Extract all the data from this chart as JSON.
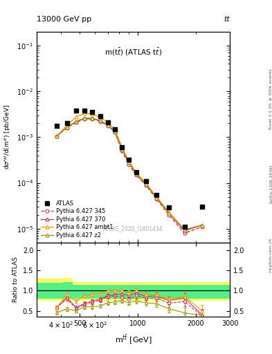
{
  "title_top": "13000 GeV pp",
  "title_right": "tt",
  "plot_title": "m(t$\\bar{t}$) (ATLAS t$\\bar{t}$)",
  "watermark": "ATLAS_2020_I1801434",
  "ylabel_main": "d$\\sigma^{fid}$/d(m$^{t\\bar{t}}$) [pb/GeV]",
  "ylabel_ratio": "Ratio to ATLAS",
  "xlabel": "m$^{t\\bar{t}}$ [GeV]",
  "atlas_x": [
    380,
    430,
    480,
    530,
    580,
    640,
    700,
    760,
    830,
    900,
    980,
    1100,
    1250,
    1450,
    1750,
    2150
  ],
  "atlas_y": [
    0.0018,
    0.002,
    0.0038,
    0.0038,
    0.0035,
    0.0029,
    0.0021,
    0.0015,
    0.0006,
    0.00032,
    0.00017,
    0.00011,
    5.5e-05,
    2.9e-05,
    1.1e-05,
    3e-05
  ],
  "p345_x": [
    380,
    430,
    480,
    530,
    580,
    640,
    700,
    760,
    830,
    900,
    980,
    1100,
    1250,
    1450,
    1750,
    2150
  ],
  "p345_y": [
    0.00105,
    0.0016,
    0.0021,
    0.0025,
    0.0025,
    0.0022,
    0.0018,
    0.0013,
    0.0005,
    0.00025,
    0.00015,
    9e-05,
    4.5e-05,
    2e-05,
    8e-06,
    1.1e-05
  ],
  "p370_x": [
    380,
    430,
    480,
    530,
    580,
    640,
    700,
    760,
    830,
    900,
    980,
    1100,
    1250,
    1450,
    1750,
    2150
  ],
  "p370_y": [
    0.00105,
    0.00165,
    0.0022,
    0.0026,
    0.0026,
    0.0023,
    0.00185,
    0.00135,
    0.00055,
    0.00028,
    0.00016,
    9.5e-05,
    4.8e-05,
    2.2e-05,
    9e-06,
    1.2e-05
  ],
  "pambt1_x": [
    380,
    430,
    480,
    530,
    580,
    640,
    700,
    760,
    830,
    900,
    980,
    1100,
    1250,
    1450,
    1750,
    2150
  ],
  "pambt1_y": [
    0.00105,
    0.0018,
    0.0028,
    0.0033,
    0.0032,
    0.0027,
    0.0021,
    0.0015,
    0.0006,
    0.0003,
    0.00017,
    0.0001,
    5e-05,
    2.3e-05,
    9.5e-06,
    1.2e-05
  ],
  "pz2_x": [
    380,
    430,
    480,
    530,
    580,
    640,
    700,
    760,
    830,
    900,
    980,
    1100,
    1250,
    1450,
    1750,
    2150
  ],
  "pz2_y": [
    0.00105,
    0.00165,
    0.0022,
    0.0026,
    0.0026,
    0.0023,
    0.00185,
    0.00135,
    0.00055,
    0.00028,
    0.00016,
    9.5e-05,
    4.8e-05,
    2.2e-05,
    9.5e-06,
    1.2e-05
  ],
  "ratio_p345_x": [
    380,
    430,
    480,
    530,
    580,
    640,
    700,
    760,
    830,
    900,
    980,
    1100,
    1250,
    1450,
    1750,
    2150
  ],
  "ratio_p345_y": [
    0.58,
    0.8,
    0.55,
    0.66,
    0.71,
    0.76,
    0.86,
    0.87,
    0.83,
    0.78,
    0.88,
    0.82,
    0.82,
    0.69,
    0.73,
    0.37
  ],
  "ratio_p345_err": [
    0.05,
    0.05,
    0.05,
    0.05,
    0.05,
    0.05,
    0.05,
    0.05,
    0.06,
    0.06,
    0.07,
    0.07,
    0.08,
    0.1,
    0.12,
    0.15
  ],
  "ratio_p370_x": [
    380,
    430,
    480,
    530,
    580,
    640,
    700,
    760,
    830,
    900,
    980,
    1100,
    1250,
    1450,
    1750,
    2150
  ],
  "ratio_p370_y": [
    0.58,
    0.83,
    0.58,
    0.68,
    0.74,
    0.79,
    0.88,
    0.9,
    0.92,
    0.88,
    0.94,
    0.86,
    0.87,
    0.76,
    0.82,
    0.4
  ],
  "ratio_p370_err": [
    0.05,
    0.05,
    0.05,
    0.05,
    0.05,
    0.05,
    0.05,
    0.05,
    0.06,
    0.06,
    0.07,
    0.07,
    0.08,
    0.1,
    0.12,
    0.15
  ],
  "ratio_pambt1_x": [
    380,
    430,
    480,
    530,
    580,
    640,
    700,
    760,
    830,
    900,
    980,
    1100,
    1250,
    1450,
    1750,
    2150
  ],
  "ratio_pambt1_y": [
    0.58,
    0.9,
    0.74,
    0.87,
    0.91,
    0.93,
    1.0,
    1.0,
    1.0,
    0.94,
    1.0,
    0.91,
    0.91,
    0.79,
    0.86,
    0.5
  ],
  "ratio_pambt1_err": [
    0.05,
    0.05,
    0.05,
    0.05,
    0.05,
    0.05,
    0.05,
    0.05,
    0.06,
    0.06,
    0.07,
    0.07,
    0.08,
    0.1,
    0.12,
    0.15
  ],
  "ratio_pz2_x": [
    380,
    430,
    480,
    530,
    580,
    640,
    700,
    760,
    830,
    900,
    980,
    1100,
    1250,
    1450,
    1750,
    2150
  ],
  "ratio_pz2_y": [
    0.45,
    0.55,
    0.5,
    0.6,
    0.6,
    0.62,
    0.7,
    0.72,
    0.75,
    0.7,
    0.75,
    0.7,
    0.68,
    0.55,
    0.45,
    0.38
  ],
  "ratio_pz2_err": [
    0.05,
    0.05,
    0.05,
    0.05,
    0.05,
    0.05,
    0.05,
    0.05,
    0.06,
    0.06,
    0.07,
    0.07,
    0.08,
    0.1,
    0.12,
    0.15
  ],
  "band_bin_edges": [
    300,
    410,
    460,
    510,
    560,
    615,
    672,
    732,
    797,
    867,
    942,
    1042,
    1178,
    1355,
    1607,
    1955,
    2400,
    3000
  ],
  "yellow_lo": [
    0.75,
    0.75,
    0.75,
    0.75,
    0.75,
    0.75,
    0.75,
    0.75,
    0.75,
    0.75,
    0.75,
    0.75,
    0.75,
    0.75,
    0.75,
    0.75,
    0.75
  ],
  "yellow_hi": [
    1.3,
    1.32,
    1.22,
    1.22,
    1.22,
    1.22,
    1.22,
    1.22,
    1.22,
    1.22,
    1.22,
    1.22,
    1.22,
    1.22,
    1.22,
    1.22,
    1.22
  ],
  "green_lo": [
    0.8,
    0.8,
    0.8,
    0.8,
    0.8,
    0.8,
    0.8,
    0.8,
    0.8,
    0.8,
    0.8,
    0.8,
    0.8,
    0.8,
    0.8,
    0.8,
    0.8
  ],
  "green_hi": [
    1.2,
    1.22,
    1.14,
    1.14,
    1.14,
    1.14,
    1.14,
    1.14,
    1.14,
    1.14,
    1.14,
    1.14,
    1.14,
    1.14,
    1.14,
    1.14,
    1.14
  ],
  "color_p345": "#cc3366",
  "color_p370": "#cc3366",
  "color_pambt1": "#ff9900",
  "color_pz2": "#999900",
  "xlim": [
    300,
    3000
  ],
  "ylim_main": [
    5e-06,
    0.2
  ],
  "ylim_ratio": [
    0.35,
    2.2
  ],
  "ratio_yticks": [
    0.5,
    1.0,
    1.5,
    2.0
  ],
  "background_color": "#ffffff"
}
